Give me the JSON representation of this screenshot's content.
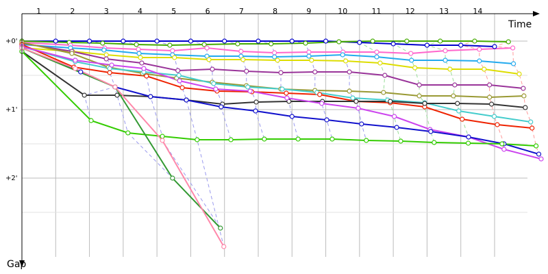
{
  "chart_data": {
    "type": "line",
    "x_label": "Time",
    "y_label": "Gap",
    "xlim": [
      0,
      15.4
    ],
    "ylim": [
      -0.4,
      3.25
    ],
    "xticks": [
      1,
      2,
      3,
      4,
      5,
      6,
      7,
      8,
      9,
      10,
      11,
      12,
      13,
      14
    ],
    "yticks": [
      {
        "value": 0,
        "label": "+0'"
      },
      {
        "value": 1,
        "label": "+1'"
      },
      {
        "value": 2,
        "label": "+2'"
      }
    ],
    "grid": true,
    "y_inverted": true,
    "series": [
      {
        "color": "#0000cc",
        "x": [
          0,
          1,
          2,
          3,
          4,
          5,
          6,
          7,
          8,
          9,
          10,
          11,
          12,
          13,
          14
        ],
        "values": [
          0,
          0,
          0,
          0,
          0,
          0,
          0,
          0,
          0,
          0,
          0.02,
          0.04,
          0.06,
          0.06,
          0.08
        ]
      },
      {
        "color": "#44aa00",
        "x": [
          0,
          1.4,
          2.39,
          3.39,
          4.38,
          5.4,
          6.39,
          7.38,
          8.4,
          9.39,
          10.39,
          11.4,
          12.39,
          13.41,
          14.41
        ],
        "values": [
          0,
          0.02,
          0.03,
          0.05,
          0.06,
          0.05,
          0.04,
          0.04,
          0.03,
          0.01,
          0,
          0,
          0,
          0,
          0.01
        ]
      },
      {
        "color": "#ff66cc",
        "x": [
          0,
          1.44,
          2.45,
          3.45,
          4.46,
          5.48,
          6.49,
          7.48,
          8.5,
          9.51,
          10.51,
          11.52,
          12.54,
          13.55,
          14.54
        ],
        "values": [
          0.02,
          0.06,
          0.1,
          0.12,
          0.14,
          0.1,
          0.15,
          0.17,
          0.16,
          0.16,
          0.16,
          0.18,
          0.14,
          0.12,
          0.1
        ]
      },
      {
        "color": "#22aaee",
        "x": [
          0,
          1.44,
          2.43,
          3.47,
          4.46,
          5.48,
          6.49,
          7.48,
          8.5,
          9.5,
          10.51,
          11.54,
          12.54,
          13.55,
          14.56
        ],
        "values": [
          0.05,
          0.1,
          0.13,
          0.18,
          0.2,
          0.22,
          0.22,
          0.23,
          0.22,
          0.2,
          0.23,
          0.28,
          0.28,
          0.29,
          0.33
        ]
      },
      {
        "color": "#dddd00",
        "x": [
          0,
          1.5,
          2.5,
          3.51,
          4.52,
          5.54,
          6.55,
          7.57,
          8.58,
          9.59,
          10.61,
          11.64,
          12.68,
          13.69,
          14.73
        ],
        "values": [
          0.1,
          0.15,
          0.2,
          0.24,
          0.24,
          0.27,
          0.27,
          0.28,
          0.28,
          0.29,
          0.32,
          0.39,
          0.41,
          0.41,
          0.48
        ]
      },
      {
        "color": "#993399",
        "x": [
          0,
          1.48,
          2.5,
          3.55,
          4.62,
          5.64,
          6.65,
          7.67,
          8.68,
          9.7,
          10.75,
          11.77,
          12.82,
          13.85,
          14.85
        ],
        "values": [
          0.03,
          0.15,
          0.26,
          0.32,
          0.43,
          0.41,
          0.44,
          0.46,
          0.45,
          0.45,
          0.5,
          0.64,
          0.64,
          0.64,
          0.69
        ]
      },
      {
        "color": "#999933",
        "x": [
          0,
          1.48,
          2.56,
          3.57,
          4.58,
          5.64,
          6.65,
          7.67,
          8.68,
          9.7,
          10.71,
          11.77,
          12.78,
          13.85,
          14.87
        ],
        "values": [
          0.02,
          0.18,
          0.38,
          0.47,
          0.54,
          0.6,
          0.65,
          0.7,
          0.72,
          0.73,
          0.75,
          0.8,
          0.8,
          0.82,
          0.8
        ]
      },
      {
        "color": "#44cccc",
        "x": [
          0,
          1.58,
          2.6,
          3.61,
          4.65,
          5.68,
          6.69,
          7.71,
          8.74,
          9.8,
          10.83,
          11.93,
          12.94,
          13.99,
          15.07
        ],
        "values": [
          0.08,
          0.3,
          0.4,
          0.45,
          0.5,
          0.62,
          0.67,
          0.7,
          0.75,
          0.83,
          0.86,
          0.9,
          1.02,
          1.1,
          1.18
        ]
      },
      {
        "color": "#ee2200",
        "x": [
          0,
          1.54,
          2.6,
          3.69,
          4.75,
          5.78,
          6.81,
          7.83,
          8.82,
          9.9,
          10.91,
          11.93,
          13.04,
          14.08,
          15.11
        ],
        "values": [
          0.05,
          0.38,
          0.46,
          0.51,
          0.68,
          0.73,
          0.74,
          0.76,
          0.78,
          0.88,
          0.9,
          0.96,
          1.14,
          1.22,
          1.27
        ]
      },
      {
        "color": "#333333",
        "x": [
          0,
          1.85,
          2.82,
          3.81,
          4.87,
          5.94,
          6.94,
          7.91,
          8.9,
          9.9,
          10.91,
          11.93,
          12.9,
          13.91,
          14.91
        ],
        "values": [
          0.15,
          0.79,
          0.79,
          0.81,
          0.86,
          0.92,
          0.89,
          0.88,
          0.88,
          0.88,
          0.88,
          0.91,
          0.91,
          0.92,
          0.97
        ]
      },
      {
        "color": "#cc44ee",
        "x": [
          0,
          1.58,
          2.66,
          3.61,
          4.67,
          5.74,
          6.76,
          7.85,
          8.88,
          9.96,
          11.03,
          12.09,
          13.23,
          14.28,
          15.38
        ],
        "values": [
          0.08,
          0.28,
          0.35,
          0.4,
          0.58,
          0.7,
          0.73,
          0.83,
          0.91,
          0.98,
          1.1,
          1.29,
          1.4,
          1.58,
          1.72
        ]
      },
      {
        "color": "#1111cc",
        "x": [
          0,
          1.74,
          2.76,
          3.81,
          4.87,
          5.9,
          6.92,
          8.0,
          9.03,
          10.06,
          11.1,
          12.11,
          13.23,
          14.28,
          15.31
        ],
        "values": [
          0.1,
          0.45,
          0.67,
          0.81,
          0.86,
          0.96,
          1.02,
          1.1,
          1.15,
          1.21,
          1.26,
          1.32,
          1.4,
          1.5,
          1.65
        ]
      },
      {
        "color": "#33cc00",
        "x": [
          0,
          2.05,
          3.14,
          4.16,
          5.19,
          6.19,
          7.18,
          8.18,
          9.19,
          10.2,
          11.22,
          12.21,
          13.22,
          14.22,
          15.23
        ],
        "values": [
          0.15,
          1.16,
          1.34,
          1.39,
          1.44,
          1.44,
          1.43,
          1.43,
          1.43,
          1.45,
          1.46,
          1.48,
          1.49,
          1.5,
          1.53
        ]
      },
      {
        "color": "#339933",
        "x": [
          0,
          2.76,
          4.46,
          5.88
        ],
        "values": [
          0.1,
          0.67,
          2.0,
          2.73
        ]
      },
      {
        "color": "#ff88aa",
        "x": [
          0,
          1.58,
          2.76,
          4.16,
          5.98
        ],
        "values": [
          0.1,
          0.4,
          0.67,
          1.45,
          3.0
        ]
      }
    ]
  }
}
